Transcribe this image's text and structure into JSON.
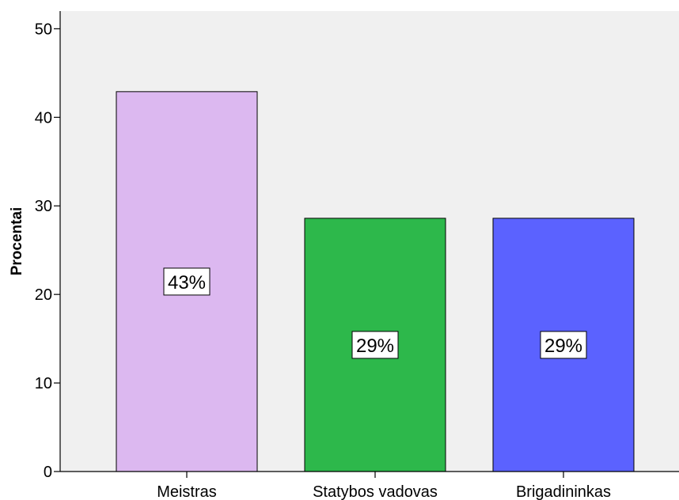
{
  "chart_data": {
    "type": "bar",
    "categories": [
      "Meistras",
      "Statybos vadovas",
      "Brigadininkas"
    ],
    "values": [
      42.9,
      28.6,
      28.6
    ],
    "data_labels": [
      "43%",
      "29%",
      "29%"
    ],
    "bar_colors": [
      "#dcb8f0",
      "#2db84b",
      "#5b62ff"
    ],
    "plot_background": "#f0f0f0",
    "title": "",
    "xlabel": "",
    "ylabel": "Procentai",
    "ylim": [
      0,
      52
    ],
    "yticks": [
      0,
      10,
      20,
      30,
      40,
      50
    ],
    "grid": false,
    "legend": "none"
  }
}
